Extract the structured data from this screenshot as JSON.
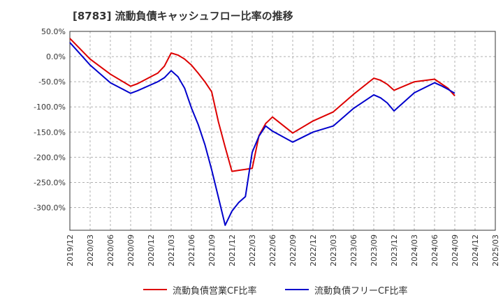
{
  "title": "[8783]  流動負債キャッシュフロー比率の推移",
  "chart_data": {
    "type": "line",
    "ylim": [
      -345,
      50
    ],
    "y_ticks": [
      50,
      0,
      -50,
      -100,
      -150,
      -200,
      -250,
      -300
    ],
    "y_tick_labels": [
      "50.0%",
      "0.0%",
      "-50.0%",
      "-100.0%",
      "-150.0%",
      "-200.0%",
      "-250.0%",
      "-300.0%"
    ],
    "x_tick_labels": [
      "2019/12",
      "2020/03",
      "2020/06",
      "2020/09",
      "2020/12",
      "2021/03",
      "2021/06",
      "2021/09",
      "2021/12",
      "2022/03",
      "2022/06",
      "2022/09",
      "2022/12",
      "2023/03",
      "2023/06",
      "2023/09",
      "2023/12",
      "2024/03",
      "2024/06",
      "2024/09",
      "2024/12",
      "2025/03"
    ],
    "grid": true,
    "legend_position": "bottom",
    "series": [
      {
        "name": "流動負債営業CF比率",
        "color": "#dd0000",
        "points": [
          [
            "2019/12",
            36
          ],
          [
            "2020/03",
            -5
          ],
          [
            "2020/06",
            -35
          ],
          [
            "2020/09",
            -59
          ],
          [
            "2020/10",
            -54
          ],
          [
            "2020/11",
            -47
          ],
          [
            "2020/12",
            -40
          ],
          [
            "2021/01",
            -33
          ],
          [
            "2021/02",
            -19
          ],
          [
            "2021/03",
            7
          ],
          [
            "2021/04",
            3
          ],
          [
            "2021/05",
            -5
          ],
          [
            "2021/06",
            -17
          ],
          [
            "2021/07",
            -33
          ],
          [
            "2021/08",
            -50
          ],
          [
            "2021/09",
            -70
          ],
          [
            "2021/10",
            -130
          ],
          [
            "2021/11",
            -180
          ],
          [
            "2021/12",
            -228
          ],
          [
            "2022/01",
            -226
          ],
          [
            "2022/02",
            -224
          ],
          [
            "2022/03",
            -222
          ],
          [
            "2022/04",
            -157
          ],
          [
            "2022/05",
            -133
          ],
          [
            "2022/06",
            -120
          ],
          [
            "2022/09",
            -152
          ],
          [
            "2022/12",
            -128
          ],
          [
            "2023/03",
            -110
          ],
          [
            "2023/06",
            -75
          ],
          [
            "2023/09",
            -43
          ],
          [
            "2023/10",
            -47
          ],
          [
            "2023/11",
            -55
          ],
          [
            "2023/12",
            -67
          ],
          [
            "2024/03",
            -50
          ],
          [
            "2024/06",
            -45
          ],
          [
            "2024/07",
            -54
          ],
          [
            "2024/08",
            -63
          ],
          [
            "2024/09",
            -78
          ]
        ]
      },
      {
        "name": "流動負債フリーCF比率",
        "color": "#0000cc",
        "points": [
          [
            "2019/12",
            28
          ],
          [
            "2020/03",
            -17
          ],
          [
            "2020/06",
            -52
          ],
          [
            "2020/09",
            -73
          ],
          [
            "2020/10",
            -68
          ],
          [
            "2020/11",
            -62
          ],
          [
            "2020/12",
            -56
          ],
          [
            "2021/01",
            -50
          ],
          [
            "2021/02",
            -42
          ],
          [
            "2021/03",
            -28
          ],
          [
            "2021/04",
            -40
          ],
          [
            "2021/05",
            -63
          ],
          [
            "2021/06",
            -102
          ],
          [
            "2021/07",
            -135
          ],
          [
            "2021/08",
            -175
          ],
          [
            "2021/09",
            -225
          ],
          [
            "2021/10",
            -280
          ],
          [
            "2021/11",
            -335
          ],
          [
            "2021/12",
            -307
          ],
          [
            "2022/01",
            -290
          ],
          [
            "2022/02",
            -278
          ],
          [
            "2022/03",
            -190
          ],
          [
            "2022/04",
            -158
          ],
          [
            "2022/05",
            -138
          ],
          [
            "2022/06",
            -148
          ],
          [
            "2022/09",
            -170
          ],
          [
            "2022/12",
            -150
          ],
          [
            "2023/03",
            -138
          ],
          [
            "2023/06",
            -103
          ],
          [
            "2023/09",
            -76
          ],
          [
            "2023/10",
            -82
          ],
          [
            "2023/11",
            -92
          ],
          [
            "2023/12",
            -108
          ],
          [
            "2024/03",
            -72
          ],
          [
            "2024/06",
            -52
          ],
          [
            "2024/07",
            -58
          ],
          [
            "2024/08",
            -65
          ],
          [
            "2024/09",
            -73
          ]
        ]
      }
    ]
  }
}
